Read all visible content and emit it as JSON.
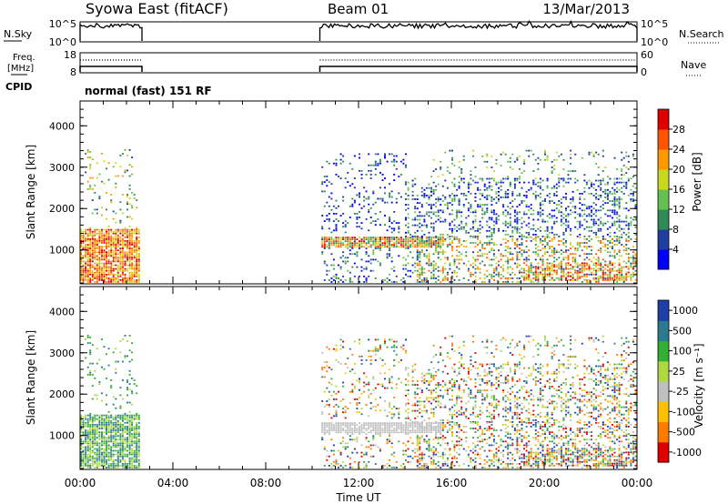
{
  "header": {
    "station": "Syowa East (fitACF)",
    "beam": "Beam 01",
    "date": "13/Mar/2013"
  },
  "status": {
    "nsky_label": "N.Sky",
    "nsearch_label": "N.Search",
    "nsky_ticks": [
      "10^5",
      "10^0"
    ],
    "nsearch_ticks": [
      "10^5",
      "10^0"
    ],
    "freq_label": "Freq.",
    "freq_unit": "[MHz]",
    "freq_ticks": [
      "18",
      "8"
    ],
    "nave_label": "Nave",
    "nave_ticks": [
      "60",
      "0"
    ],
    "cpid_label": "CPID",
    "cpid_value": "normal (fast) 151 RF"
  },
  "colors": {
    "power_scale": [
      "#0000ff",
      "#1f3ea0",
      "#2e8b57",
      "#66c050",
      "#c8d820",
      "#ff9900",
      "#ff5500",
      "#e00000"
    ],
    "velocity_scale": [
      "#e00000",
      "#ff7a00",
      "#ffc000",
      "#c0c0c0",
      "#b0d840",
      "#33b033",
      "#2a7a90",
      "#1e3ea8"
    ]
  },
  "chart_data": [
    {
      "type": "heatmap",
      "title": "",
      "xlabel": "",
      "ylabel": "Slant Range [km]",
      "x_range": [
        "00:00",
        "24:00"
      ],
      "ylim": [
        180,
        4600
      ],
      "yticks": [
        "1000",
        "2000",
        "3000",
        "4000"
      ],
      "colorbar": {
        "label": "Power [dB]",
        "ticks": [
          "4",
          "8",
          "12",
          "16",
          "20",
          "24",
          "28"
        ],
        "range": [
          0,
          32
        ]
      },
      "data_coverage": [
        [
          "00:00",
          "02:40"
        ],
        [
          "10:20",
          "24:00"
        ]
      ]
    },
    {
      "type": "heatmap",
      "title": "",
      "xlabel": "Time UT",
      "ylabel": "Slant Range [km]",
      "x_range": [
        "00:00",
        "24:00"
      ],
      "xticks": [
        "00:00",
        "04:00",
        "08:00",
        "12:00",
        "16:00",
        "20:00",
        "00:00"
      ],
      "ylim": [
        180,
        4600
      ],
      "yticks": [
        "1000",
        "2000",
        "3000",
        "4000"
      ],
      "colorbar": {
        "label": "Velocity [m s⁻¹]",
        "ticks": [
          "1000",
          "500",
          "100",
          "25",
          "-25",
          "-100",
          "-500",
          "-1000"
        ]
      },
      "data_coverage": [
        [
          "00:00",
          "02:40"
        ],
        [
          "10:20",
          "24:00"
        ]
      ]
    }
  ]
}
